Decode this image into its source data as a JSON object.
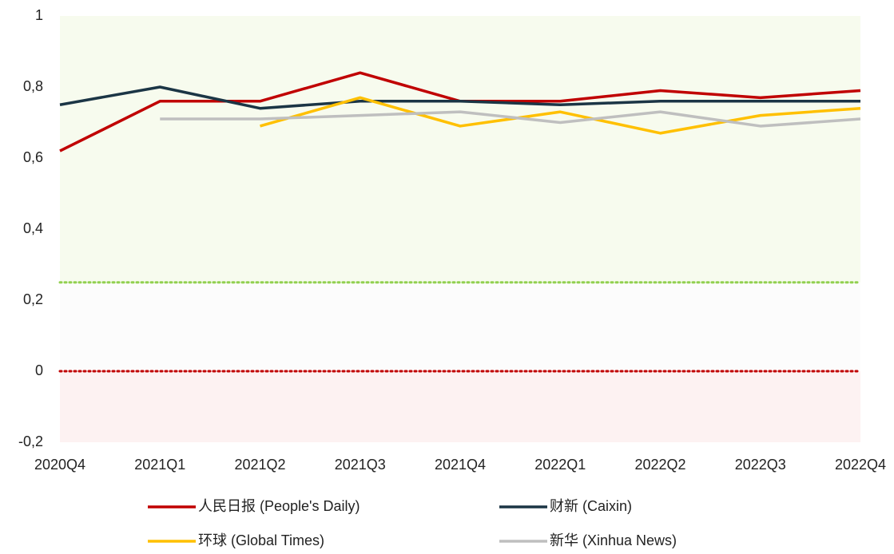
{
  "chart_data": {
    "type": "line",
    "categories": [
      "2020Q4",
      "2021Q1",
      "2021Q2",
      "2021Q3",
      "2021Q4",
      "2022Q1",
      "2022Q2",
      "2022Q3",
      "2022Q4"
    ],
    "series": [
      {
        "name": "人民日报 (People's Daily)",
        "color": "#c00000",
        "values": [
          0.62,
          0.76,
          0.76,
          0.84,
          0.76,
          0.76,
          0.79,
          0.77,
          0.79
        ]
      },
      {
        "name": "财新 (Caixin)",
        "color": "#1b3545",
        "values": [
          0.75,
          0.8,
          0.74,
          0.76,
          0.76,
          0.75,
          0.76,
          0.76,
          0.76
        ]
      },
      {
        "name": "环球 (Global Times)",
        "color": "#ffc000",
        "values": [
          null,
          null,
          0.69,
          0.77,
          0.69,
          0.73,
          0.67,
          0.72,
          0.74
        ]
      },
      {
        "name": "新华 (Xinhua News)",
        "color": "#bfbfbf",
        "values": [
          null,
          0.71,
          0.71,
          0.72,
          0.73,
          0.7,
          0.73,
          0.69,
          0.71
        ]
      }
    ],
    "ylim": [
      -0.2,
      1
    ],
    "yticks": [
      {
        "value": -0.2,
        "label": "-0,2"
      },
      0,
      {
        "value": 0.2,
        "label": "0,2"
      },
      {
        "value": 0.4,
        "label": "0,4"
      },
      {
        "value": 0.6,
        "label": "0,6"
      },
      {
        "value": 0.8,
        "label": "0,8"
      },
      1
    ],
    "bands": [
      {
        "from": 0.25,
        "to": 1,
        "color": "#f7fbee"
      },
      {
        "from": 0,
        "to": 0.25,
        "color": "#fcfcfc"
      },
      {
        "from": -0.2,
        "to": 0,
        "color": "#fdf2f2"
      }
    ],
    "reference_lines": [
      {
        "value": 0.25,
        "color": "#92d050"
      },
      {
        "value": 0,
        "color": "#c00000"
      }
    ],
    "legend": "bottom"
  }
}
